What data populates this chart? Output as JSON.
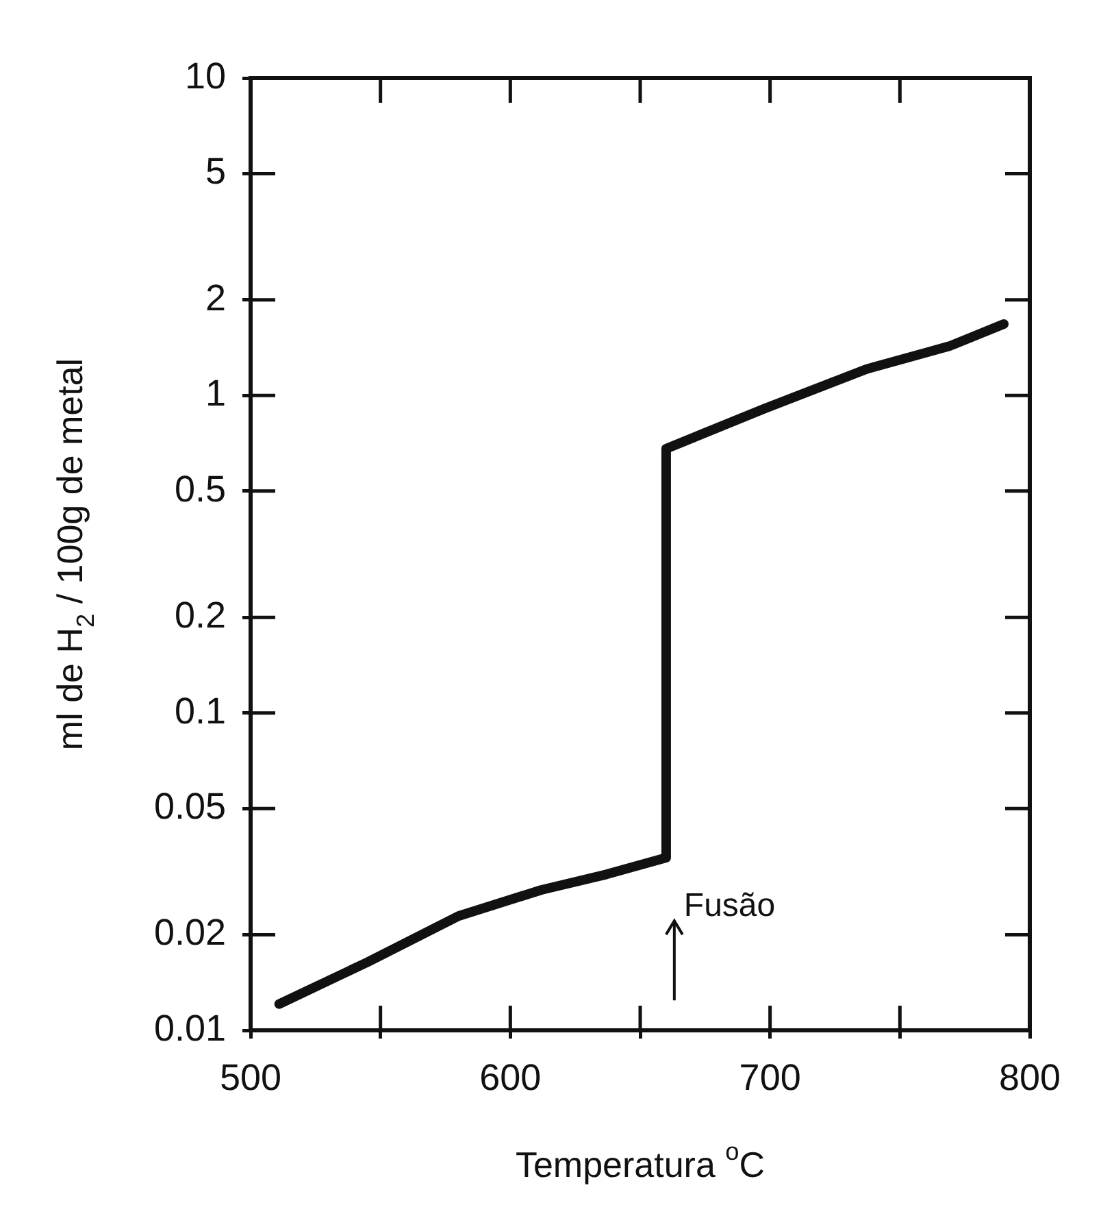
{
  "chart_data": {
    "type": "line",
    "xlabel": "Temperatura $^{o}$C",
    "ylabel": "ml de H$_{2}$ / 100g de metal",
    "x": [
      511,
      545,
      580,
      612,
      637,
      660,
      660,
      698,
      737,
      769,
      790
    ],
    "series": [
      {
        "color": "#111111",
        "values": [
          0.0121,
          0.0164,
          0.0229,
          0.0277,
          0.031,
          0.035,
          0.68,
          0.91,
          1.21,
          1.43,
          1.68
        ]
      }
    ],
    "log": "y",
    "xlim": [
      500,
      800
    ],
    "xticks": [
      500,
      {
        "value": 550,
        "label": null
      },
      600,
      {
        "value": 650,
        "label": null
      },
      700,
      {
        "value": 750,
        "label": null
      },
      800
    ],
    "ylim": [
      0.01,
      10
    ],
    "yticks": [
      0.01,
      0.02,
      0.05,
      0.1,
      0.2,
      0.5,
      1,
      2,
      5,
      10
    ],
    "marker": "none",
    "line_style": "solid",
    "legend": false,
    "annotations": [
      "Fusão"
    ]
  }
}
